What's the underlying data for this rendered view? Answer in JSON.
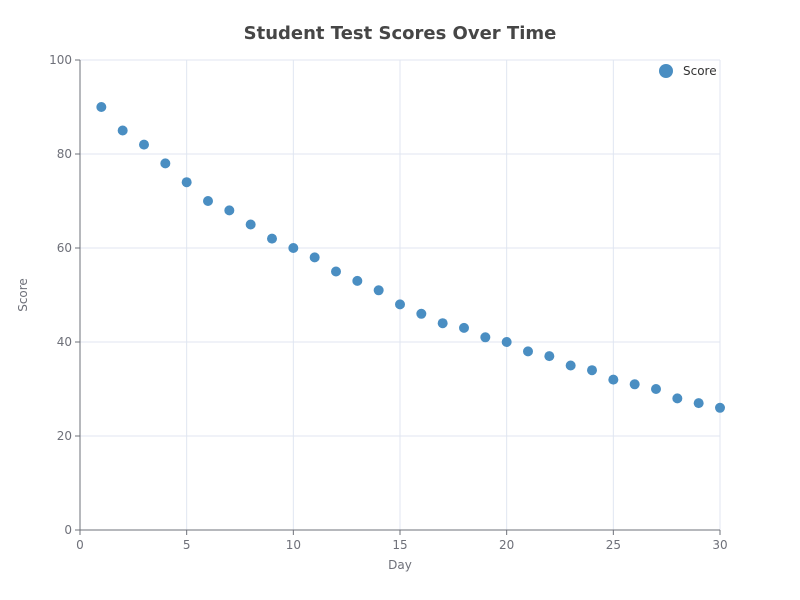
{
  "chart_data": {
    "type": "scatter",
    "title": "Student Test Scores Over Time",
    "xlabel": "Day",
    "ylabel": "Score",
    "xlim": [
      0,
      30
    ],
    "ylim": [
      0,
      100
    ],
    "x_ticks": [
      0,
      5,
      10,
      15,
      20,
      25,
      30
    ],
    "y_ticks": [
      0,
      20,
      40,
      60,
      80,
      100
    ],
    "grid": true,
    "legend_position": "top-right",
    "series": [
      {
        "name": "Score",
        "color": "#4a8ec2",
        "x": [
          1,
          2,
          3,
          4,
          5,
          6,
          7,
          8,
          9,
          10,
          11,
          12,
          13,
          14,
          15,
          16,
          17,
          18,
          19,
          20,
          21,
          22,
          23,
          24,
          25,
          26,
          27,
          28,
          29,
          30
        ],
        "y": [
          90,
          85,
          82,
          78,
          74,
          70,
          68,
          65,
          62,
          60,
          58,
          55,
          53,
          51,
          48,
          46,
          44,
          43,
          41,
          40,
          38,
          37,
          35,
          34,
          32,
          31,
          30,
          28,
          27,
          26
        ]
      }
    ]
  }
}
